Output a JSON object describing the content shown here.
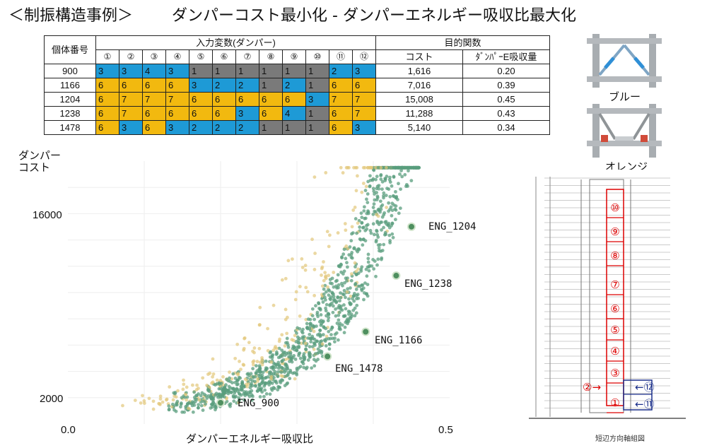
{
  "title": {
    "main": "＜制振構造事例＞",
    "sub": "ダンパーコスト最小化 - ダンパーエネルギー吸収比最大化"
  },
  "table": {
    "id_header": "個体番号",
    "input_header": "入力変数(ダンパー)",
    "objective_header": "目的関数",
    "param_headers": [
      "①",
      "②",
      "③",
      "④",
      "⑤",
      "⑥",
      "⑦",
      "⑧",
      "⑨",
      "⑩",
      "⑪",
      "⑫"
    ],
    "objective_cols": [
      "コスト",
      "ﾀﾞﾝﾊﾟｰE吸収量"
    ],
    "rows": [
      {
        "id": "900",
        "vals": [
          "3",
          "3",
          "4",
          "3",
          "1",
          "1",
          "1",
          "1",
          "1",
          "1",
          "2",
          "3"
        ],
        "colors": [
          "b",
          "b",
          "b",
          "b",
          "g",
          "g",
          "g",
          "g",
          "g",
          "g",
          "b",
          "b"
        ],
        "cost": "1,616",
        "energy": "0.20"
      },
      {
        "id": "1166",
        "vals": [
          "6",
          "6",
          "6",
          "6",
          "3",
          "2",
          "2",
          "1",
          "2",
          "1",
          "6",
          "6"
        ],
        "colors": [
          "o",
          "o",
          "o",
          "o",
          "b",
          "b",
          "b",
          "g",
          "b",
          "g",
          "o",
          "o"
        ],
        "cost": "7,016",
        "energy": "0.39"
      },
      {
        "id": "1204",
        "vals": [
          "6",
          "7",
          "7",
          "7",
          "6",
          "6",
          "6",
          "6",
          "6",
          "3",
          "7",
          "7"
        ],
        "colors": [
          "o",
          "o",
          "o",
          "o",
          "o",
          "o",
          "o",
          "o",
          "o",
          "b",
          "o",
          "o"
        ],
        "cost": "15,008",
        "energy": "0.45"
      },
      {
        "id": "1238",
        "vals": [
          "6",
          "7",
          "6",
          "6",
          "6",
          "6",
          "3",
          "6",
          "4",
          "1",
          "6",
          "7"
        ],
        "colors": [
          "o",
          "o",
          "o",
          "o",
          "o",
          "o",
          "b",
          "o",
          "b",
          "g",
          "o",
          "o"
        ],
        "cost": "11,288",
        "energy": "0.43"
      },
      {
        "id": "1478",
        "vals": [
          "6",
          "3",
          "6",
          "3",
          "2",
          "2",
          "2",
          "1",
          "1",
          "1",
          "6",
          "3"
        ],
        "colors": [
          "o",
          "b",
          "o",
          "b",
          "b",
          "b",
          "b",
          "g",
          "g",
          "g",
          "o",
          "b"
        ],
        "cost": "5,140",
        "energy": "0.34"
      }
    ]
  },
  "legend": {
    "blue_label": "ブルー",
    "orange_label": "オレンジ"
  },
  "chart_data": {
    "type": "scatter",
    "ylabel": "ダンパー\nコスト",
    "xlabel": "ダンパーエネルギー吸収比",
    "x_ticks": [
      "0.0",
      "0.5"
    ],
    "y_ticks": [
      "16000",
      "2000"
    ],
    "xlim": [
      0.0,
      0.5
    ],
    "ylim": [
      0,
      20000
    ],
    "colors": {
      "green": "#5a9e7d",
      "yellow": "#e3c77a"
    },
    "highlighted": [
      {
        "name": "ENG_900",
        "x": 0.2,
        "y": 1616
      },
      {
        "name": "ENG_1166",
        "x": 0.39,
        "y": 7016
      },
      {
        "name": "ENG_1204",
        "x": 0.45,
        "y": 15008
      },
      {
        "name": "ENG_1238",
        "x": 0.43,
        "y": 11288
      },
      {
        "name": "ENG_1478",
        "x": 0.34,
        "y": 5140
      }
    ]
  },
  "building": {
    "zones": [
      "⑩",
      "⑨",
      "⑧",
      "⑦",
      "⑥",
      "⑤",
      "④",
      "③",
      "①"
    ],
    "arrows": [
      {
        "label": "②",
        "dir": "→"
      },
      {
        "label": "⑫",
        "dir": "←"
      },
      {
        "label": "⑪",
        "dir": "←"
      }
    ],
    "caption": "短辺方向軸組図"
  }
}
